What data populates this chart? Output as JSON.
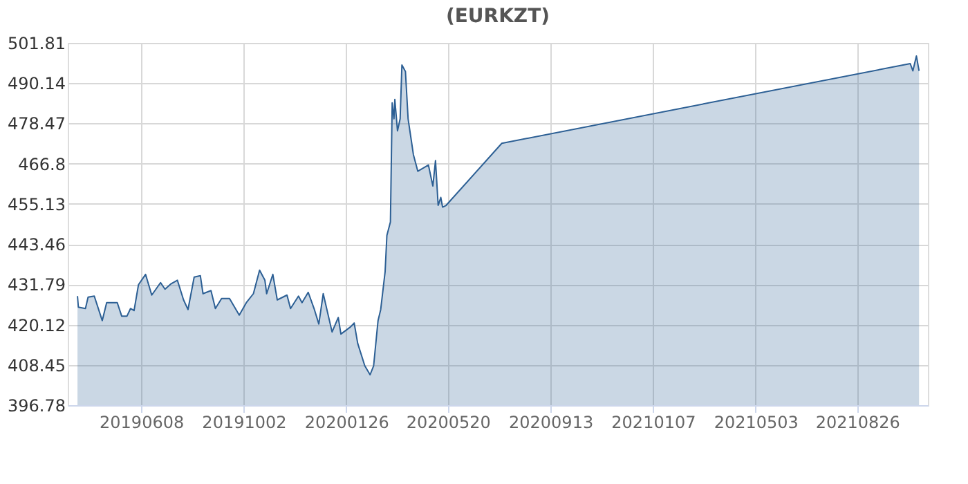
{
  "chart_data": {
    "type": "area",
    "title": "(EURKZT)",
    "x": [
      "2019-03-28",
      "2019-03-29",
      "2019-04-06",
      "2019-04-09",
      "2019-04-16",
      "2019-04-25",
      "2019-04-30",
      "2019-05-12",
      "2019-05-17",
      "2019-05-23",
      "2019-05-27",
      "2019-05-31",
      "2019-06-05",
      "2019-06-13",
      "2019-06-20",
      "2019-06-30",
      "2019-07-05",
      "2019-07-12",
      "2019-07-19",
      "2019-07-26",
      "2019-07-31",
      "2019-08-07",
      "2019-08-14",
      "2019-08-17",
      "2019-08-26",
      "2019-08-31",
      "2019-09-07",
      "2019-09-16",
      "2019-09-27",
      "2019-10-05",
      "2019-10-13",
      "2019-10-20",
      "2019-10-26",
      "2019-10-28",
      "2019-11-04",
      "2019-11-09",
      "2019-11-20",
      "2019-11-24",
      "2019-12-03",
      "2019-12-07",
      "2019-12-14",
      "2019-12-21",
      "2019-12-26",
      "2019-12-31",
      "2020-01-10",
      "2020-01-17",
      "2020-01-20",
      "2020-01-31",
      "2020-02-04",
      "2020-02-08",
      "2020-02-16",
      "2020-02-22",
      "2020-02-26",
      "2020-03-02",
      "2020-03-05",
      "2020-03-10",
      "2020-03-12",
      "2020-03-16",
      "2020-03-18",
      "2020-03-20",
      "2020-03-21",
      "2020-03-24",
      "2020-03-27",
      "2020-03-29",
      "2020-04-02",
      "2020-04-05",
      "2020-04-08",
      "2020-04-11",
      "2020-04-16",
      "2020-04-28",
      "2020-05-03",
      "2020-05-06",
      "2020-05-09",
      "2020-05-12",
      "2020-05-14",
      "2020-05-18",
      "2020-07-20",
      "2021-10-25",
      "2021-10-28",
      "2021-11-01",
      "2021-11-04"
    ],
    "series": [
      {
        "color": "#2c5f94",
        "values": [
          428.4,
          425.2,
          424.8,
          428.1,
          428.4,
          421.3,
          426.5,
          426.5,
          422.6,
          422.6,
          424.8,
          424.2,
          431.7,
          434.7,
          428.7,
          432.3,
          430.4,
          432.0,
          433.0,
          427.3,
          424.5,
          433.9,
          434.3,
          429.1,
          430.0,
          424.8,
          427.7,
          427.7,
          422.9,
          426.5,
          429.1,
          435.9,
          433.0,
          429.1,
          434.7,
          427.3,
          428.7,
          424.8,
          428.4,
          426.5,
          429.5,
          424.5,
          420.3,
          429.1,
          418.0,
          422.2,
          417.4,
          419.5,
          420.6,
          414.7,
          408.2,
          405.6,
          408.2,
          421.3,
          424.5,
          435.5,
          446.0,
          449.9,
          484.4,
          479.8,
          485.4,
          476.3,
          479.8,
          495.4,
          493.5,
          479.8,
          474.6,
          469.4,
          464.6,
          466.4,
          460.3,
          467.7,
          454.7,
          457.0,
          454.2,
          454.7,
          472.7,
          495.8,
          493.7,
          498.0,
          493.7
        ]
      }
    ],
    "xlim": [
      "2019-03-17",
      "2021-11-14"
    ],
    "xticks": [
      {
        "value": "2019-06-08",
        "label": "20190608"
      },
      {
        "value": "2019-10-02",
        "label": "20191002"
      },
      {
        "value": "2020-01-26",
        "label": "20200126"
      },
      {
        "value": "2020-05-20",
        "label": "20200520"
      },
      {
        "value": "2020-09-13",
        "label": "20200913"
      },
      {
        "value": "2021-01-07",
        "label": "20210107"
      },
      {
        "value": "2021-05-03",
        "label": "20210503"
      },
      {
        "value": "2021-08-26",
        "label": "20210826"
      }
    ],
    "ylim": [
      396.78,
      501.81
    ],
    "yticks": [
      396.78,
      408.45,
      420.12,
      431.79,
      443.46,
      455.13,
      466.8,
      478.47,
      490.14,
      501.81
    ],
    "grid": true
  }
}
